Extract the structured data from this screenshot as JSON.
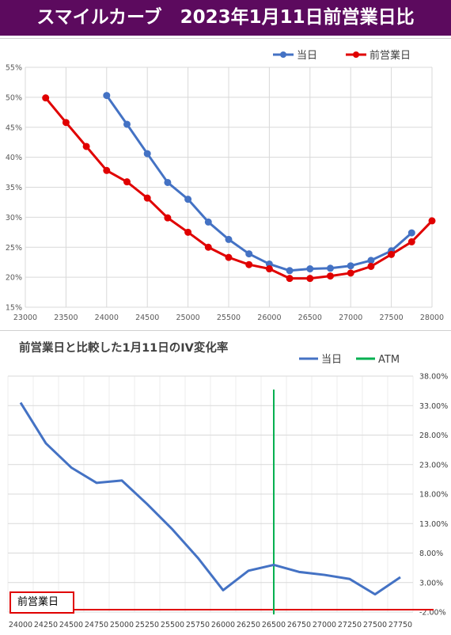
{
  "title": "スマイルカーブ　2023年1月11日前営業日比",
  "colors": {
    "title_bg": "#5c0a5e",
    "today": "#4472c4",
    "prev": "#e00000",
    "iv_line": "#4472c4",
    "atm": "#00b050",
    "grid": "#d9d9d9"
  },
  "chart_data": [
    {
      "type": "line",
      "title": "",
      "xlabel": "",
      "ylabel": "",
      "xlim": [
        23000,
        28000
      ],
      "ylim": [
        0.15,
        0.55
      ],
      "x_ticks": [
        23000,
        23500,
        24000,
        24500,
        25000,
        25500,
        26000,
        26500,
        27000,
        27500,
        28000
      ],
      "y_ticks": [
        "15%",
        "20%",
        "25%",
        "30%",
        "35%",
        "40%",
        "45%",
        "50%",
        "55%"
      ],
      "grid": true,
      "legend_position": "top-right",
      "series": [
        {
          "name": "当日",
          "color": "#4472c4",
          "x": [
            24000,
            24250,
            24500,
            24750,
            25000,
            25250,
            25500,
            25750,
            26000,
            26250,
            26500,
            26750,
            27000,
            27250,
            27500,
            27750
          ],
          "y": [
            0.503,
            0.455,
            0.406,
            0.358,
            0.33,
            0.292,
            0.263,
            0.239,
            0.222,
            0.211,
            0.214,
            0.215,
            0.219,
            0.228,
            0.244,
            0.274
          ]
        },
        {
          "name": "前営業日",
          "color": "#e00000",
          "x": [
            23250,
            23500,
            23750,
            24000,
            24250,
            24500,
            24750,
            25000,
            25250,
            25500,
            25750,
            26000,
            26250,
            26500,
            26750,
            27000,
            27250,
            27500,
            27750,
            28000
          ],
          "y": [
            0.499,
            0.458,
            0.418,
            0.378,
            0.359,
            0.332,
            0.299,
            0.275,
            0.25,
            0.233,
            0.221,
            0.214,
            0.198,
            0.198,
            0.202,
            0.207,
            0.218,
            0.238,
            0.259,
            0.294
          ]
        }
      ]
    },
    {
      "type": "line",
      "title": "前営業日と比較した1月11日のIV変化率",
      "xlabel": "",
      "ylabel": "",
      "categories": [
        "24000",
        "24250",
        "24500",
        "24750",
        "25000",
        "25250",
        "25500",
        "25750",
        "26000",
        "26250",
        "26500",
        "26750",
        "27000",
        "27250",
        "27500",
        "27750"
      ],
      "ylim": [
        -0.02,
        0.38
      ],
      "y_ticks": [
        "-2.00%",
        "3.00%",
        "8.00%",
        "13.00%",
        "18.00%",
        "23.00%",
        "28.00%",
        "33.00%",
        "38.00%"
      ],
      "grid": true,
      "legend_position": "top-right",
      "series": [
        {
          "name": "当日",
          "color": "#4472c4",
          "values": [
            0.335,
            0.266,
            0.225,
            0.199,
            0.203,
            0.163,
            0.12,
            0.072,
            0.017,
            0.05,
            0.06,
            0.048,
            0.043,
            0.036,
            0.01,
            0.039
          ]
        }
      ],
      "atm": {
        "name": "ATM",
        "x": "26500",
        "color": "#00b050"
      },
      "baseline": {
        "label": "前営業日",
        "value": -0.016,
        "color": "#e00000"
      }
    }
  ]
}
